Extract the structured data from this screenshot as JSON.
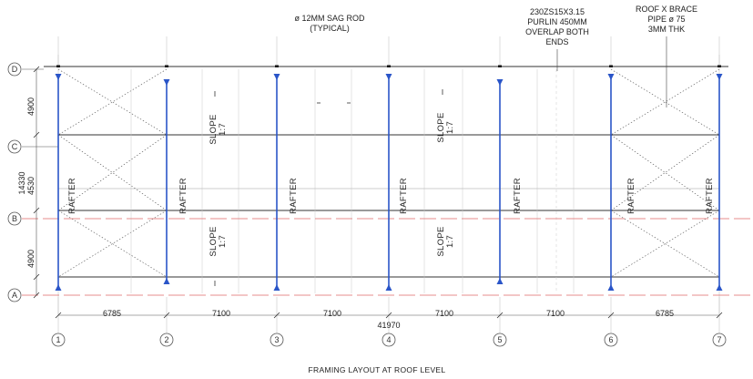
{
  "grid_lines": {
    "columns": [
      "1",
      "2",
      "3",
      "4",
      "5",
      "6",
      "7"
    ],
    "rows": [
      "D",
      "C",
      "B",
      "A"
    ]
  },
  "member_labels": {
    "rafter": "RAFTER",
    "slope_word": "SLOPE",
    "slope_ratio": "1:7"
  },
  "notes": {
    "sag_rod": [
      "ø 12MM SAG ROD",
      "(TYPICAL)"
    ],
    "purlin": [
      "230ZS15X3.15",
      "PURLIN 450MM",
      "OVERLAP BOTH",
      "ENDS"
    ],
    "roof_brace": [
      "ROOF X BRACE",
      "PIPE ø 75",
      "3MM THK"
    ]
  },
  "dimensions": {
    "bays": [
      "6785",
      "7100",
      "7100",
      "7100",
      "7100",
      "6785"
    ],
    "overall_length": "41970",
    "row_spacings": [
      "4900",
      "4530",
      "4900"
    ],
    "overall_width": "14330"
  },
  "title": "FRAMING LAYOUT  AT ROOF LEVEL",
  "colors": {
    "rafter": "#2a55c8",
    "gridline_red": "#e06a6a",
    "line": "#333333"
  }
}
